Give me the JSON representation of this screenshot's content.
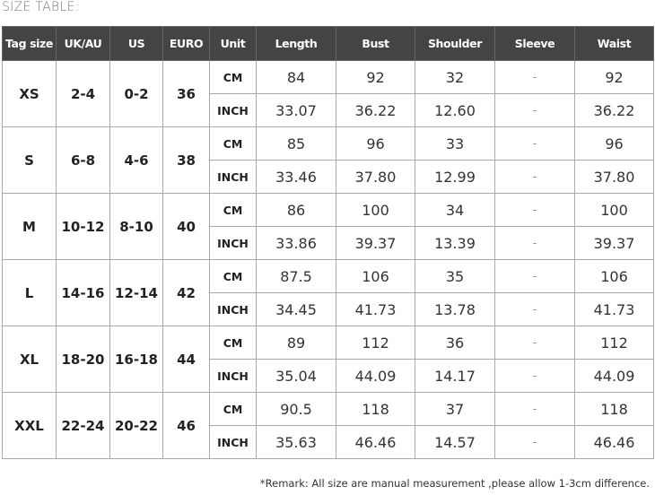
{
  "title": "SIZE TABLE:",
  "headers": [
    "Tag size",
    "UK/AU",
    "US",
    "EURO",
    "Unit",
    "Length",
    "Bust",
    "Shoulder",
    "Sleeve",
    "Waist"
  ],
  "rows": [
    {
      "tag": "XS",
      "uk": "2-4",
      "us": "0-2",
      "euro": "36",
      "cm": [
        "CM",
        "84",
        "92",
        "32",
        "-",
        "92"
      ],
      "inch": [
        "INCH",
        "33.07",
        "36.22",
        "12.60",
        "-",
        "36.22"
      ]
    },
    {
      "tag": "S",
      "uk": "6-8",
      "us": "4-6",
      "euro": "38",
      "cm": [
        "CM",
        "85",
        "96",
        "33",
        "-",
        "96"
      ],
      "inch": [
        "INCH",
        "33.46",
        "37.80",
        "12.99",
        "-",
        "37.80"
      ]
    },
    {
      "tag": "M",
      "uk": "10-12",
      "us": "8-10",
      "euro": "40",
      "cm": [
        "CM",
        "86",
        "100",
        "34",
        "-",
        "100"
      ],
      "inch": [
        "INCH",
        "33.86",
        "39.37",
        "13.39",
        "-",
        "39.37"
      ]
    },
    {
      "tag": "L",
      "uk": "14-16",
      "us": "12-14",
      "euro": "42",
      "cm": [
        "CM",
        "87.5",
        "106",
        "35",
        "-",
        "106"
      ],
      "inch": [
        "INCH",
        "34.45",
        "41.73",
        "13.78",
        "-",
        "41.73"
      ]
    },
    {
      "tag": "XL",
      "uk": "18-20",
      "us": "16-18",
      "euro": "44",
      "cm": [
        "CM",
        "89",
        "112",
        "36",
        "-",
        "112"
      ],
      "inch": [
        "INCH",
        "35.04",
        "44.09",
        "14.17",
        "-",
        "44.09"
      ]
    },
    {
      "tag": "XXL",
      "uk": "22-24",
      "us": "20-22",
      "euro": "46",
      "cm": [
        "CM",
        "90.5",
        "118",
        "37",
        "-",
        "118"
      ],
      "inch": [
        "INCH",
        "35.63",
        "46.46",
        "14.57",
        "-",
        "46.46"
      ]
    }
  ],
  "remark": "*Remark: All size are manual measurement ,please allow 1-3cm difference."
}
